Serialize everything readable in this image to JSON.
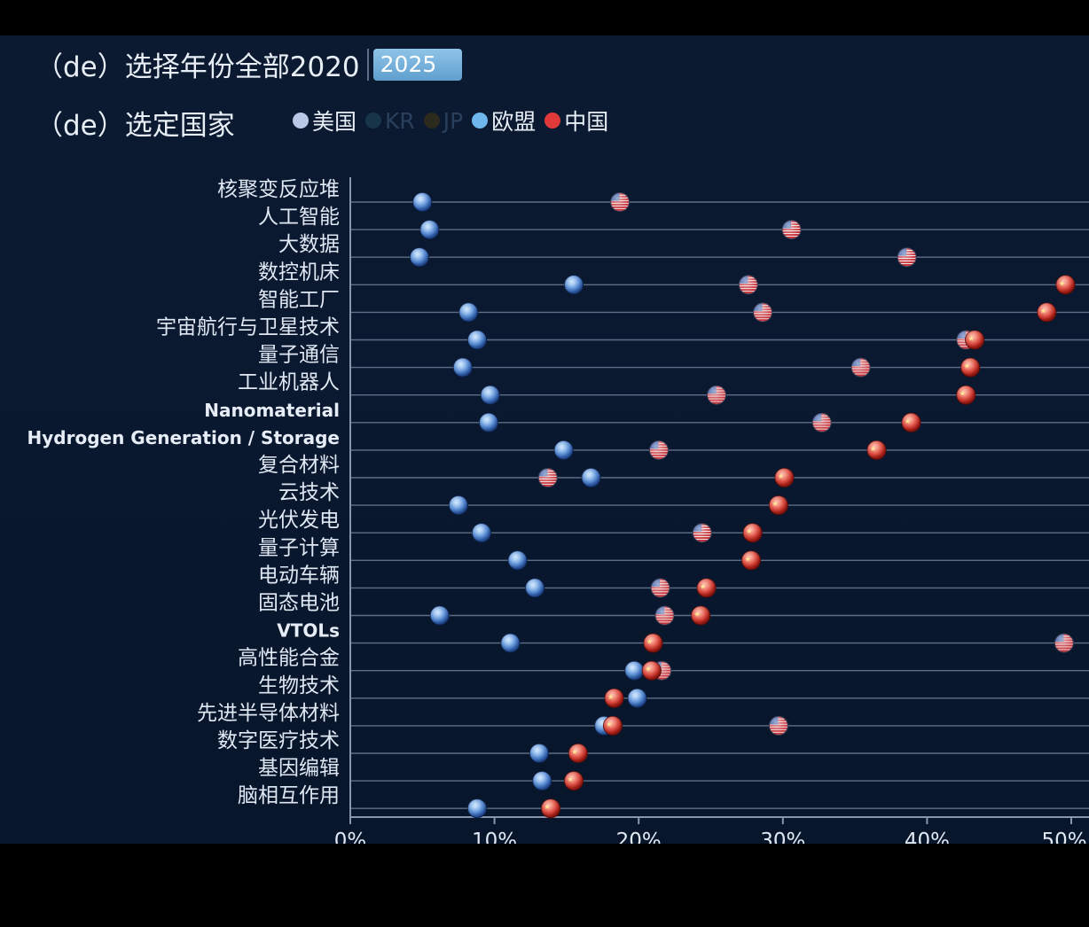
{
  "header": {
    "year_label": "（de）选择年份全部2020",
    "year_selected": "2025",
    "country_label": "（de）选定国家"
  },
  "legend": [
    {
      "name": "美国",
      "color": "#b9c8e6",
      "dim": false,
      "icon": "circle-icon"
    },
    {
      "name": "KR",
      "color": "#173449",
      "dim": true,
      "icon": "circle-icon"
    },
    {
      "name": "JP",
      "color": "#2b2a1c",
      "dim": true,
      "icon": "circle-icon"
    },
    {
      "name": "欧盟",
      "color": "#6fb6ec",
      "dim": false,
      "icon": "circle-icon"
    },
    {
      "name": "中国",
      "color": "#e0393a",
      "dim": false,
      "icon": "circle-icon"
    }
  ],
  "colors": {
    "eu": "#4a82d0",
    "cn": "#d42a20",
    "us_red": "#c8323a",
    "us_white": "#f2f2f2",
    "us_blue": "#2c4f9e"
  },
  "chart_data": {
    "type": "scatter",
    "xlim": [
      0,
      50
    ],
    "x_ticks": [
      "0%",
      "10%",
      "20%",
      "30%",
      "40%",
      "50%"
    ],
    "x_unit": "%",
    "categories": [
      "核聚变反应堆",
      "人工智能",
      "大数据",
      "数控机床",
      "智能工厂",
      "宇宙航行与卫星技术",
      "量子通信",
      "工业机器人",
      "Nanomaterial",
      "Hydrogen Generation / Storage",
      "复合材料",
      "云技术",
      "光伏发电",
      "量子计算",
      "电动车辆",
      "固态电池",
      "VTOLs",
      "高性能合金",
      "生物技术",
      "先进半导体材料",
      "数字医疗技术",
      "基因编辑",
      "脑相互作用"
    ],
    "series": [
      {
        "name": "欧盟",
        "values": [
          5,
          5.5,
          4.8,
          15.5,
          8.2,
          8.8,
          7.8,
          9.7,
          9.6,
          14.8,
          16.7,
          7.5,
          9.1,
          11.6,
          12.8,
          6.2,
          11.1,
          19.7,
          19.9,
          17.6,
          13.1,
          13.3,
          8.8
        ]
      },
      {
        "name": "美国",
        "values": [
          18.7,
          30.6,
          38.6,
          27.6,
          28.6,
          42.7,
          35.4,
          25.4,
          32.7,
          21.4,
          13.7,
          null,
          24.4,
          null,
          21.5,
          21.8,
          49.5,
          21.6,
          null,
          29.7,
          null,
          null,
          null
        ]
      },
      {
        "name": "中国",
        "values": [
          null,
          null,
          null,
          49.6,
          48.3,
          43.3,
          43,
          42.7,
          38.9,
          36.5,
          30.1,
          29.7,
          27.9,
          27.8,
          24.7,
          24.3,
          21,
          20.9,
          18.3,
          18.2,
          15.8,
          15.5,
          13.9
        ]
      }
    ]
  }
}
